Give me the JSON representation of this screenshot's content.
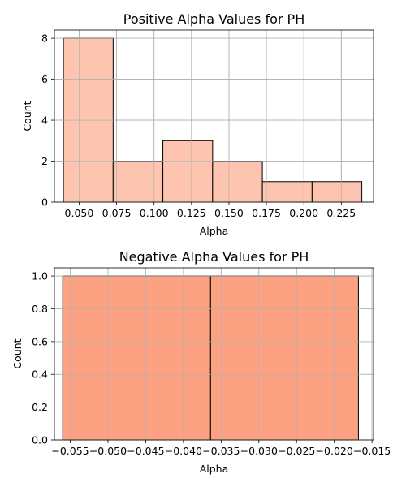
{
  "chart_data": [
    {
      "type": "histogram",
      "title": "Positive Alpha Values for PH",
      "xlabel": "Alpha",
      "ylabel": "Count",
      "bar_color": "#fdc4b0",
      "grid": true,
      "xlim": [
        0.0335,
        0.2465
      ],
      "ylim": [
        0,
        8.4
      ],
      "xticks": [
        0.05,
        0.075,
        0.1,
        0.125,
        0.15,
        0.175,
        0.2,
        0.225
      ],
      "xtick_labels": [
        "0.050",
        "0.075",
        "0.100",
        "0.125",
        "0.150",
        "0.175",
        "0.200",
        "0.225"
      ],
      "yticks": [
        0,
        2,
        4,
        6,
        8
      ],
      "ytick_labels": [
        "0",
        "2",
        "4",
        "6",
        "8"
      ],
      "bins": [
        {
          "x0": 0.0395,
          "x1": 0.0727,
          "count": 8
        },
        {
          "x0": 0.0727,
          "x1": 0.1059,
          "count": 2
        },
        {
          "x0": 0.1059,
          "x1": 0.1391,
          "count": 3
        },
        {
          "x0": 0.1391,
          "x1": 0.1723,
          "count": 2
        },
        {
          "x0": 0.1723,
          "x1": 0.2055,
          "count": 1
        },
        {
          "x0": 0.2055,
          "x1": 0.2387,
          "count": 1
        }
      ]
    },
    {
      "type": "histogram",
      "title": "Negative Alpha Values for PH",
      "xlabel": "Alpha",
      "ylabel": "Count",
      "bar_color": "#fca282",
      "grid": true,
      "xlim": [
        -0.0571,
        -0.0148
      ],
      "ylim": [
        0,
        1.05
      ],
      "xticks": [
        -0.055,
        -0.05,
        -0.045,
        -0.04,
        -0.035,
        -0.03,
        -0.025,
        -0.02,
        -0.015
      ],
      "xtick_labels": [
        "−0.055",
        "−0.050",
        "−0.045",
        "−0.040",
        "−0.035",
        "−0.030",
        "−0.025",
        "−0.020",
        "−0.015"
      ],
      "yticks": [
        0,
        0.2,
        0.4,
        0.6,
        0.8,
        1.0
      ],
      "ytick_labels": [
        "0.0",
        "0.2",
        "0.4",
        "0.6",
        "0.8",
        "1.0"
      ],
      "bins": [
        {
          "x0": -0.056,
          "x1": -0.0364,
          "count": 1
        },
        {
          "x0": -0.0364,
          "x1": -0.0168,
          "count": 1
        }
      ]
    }
  ]
}
